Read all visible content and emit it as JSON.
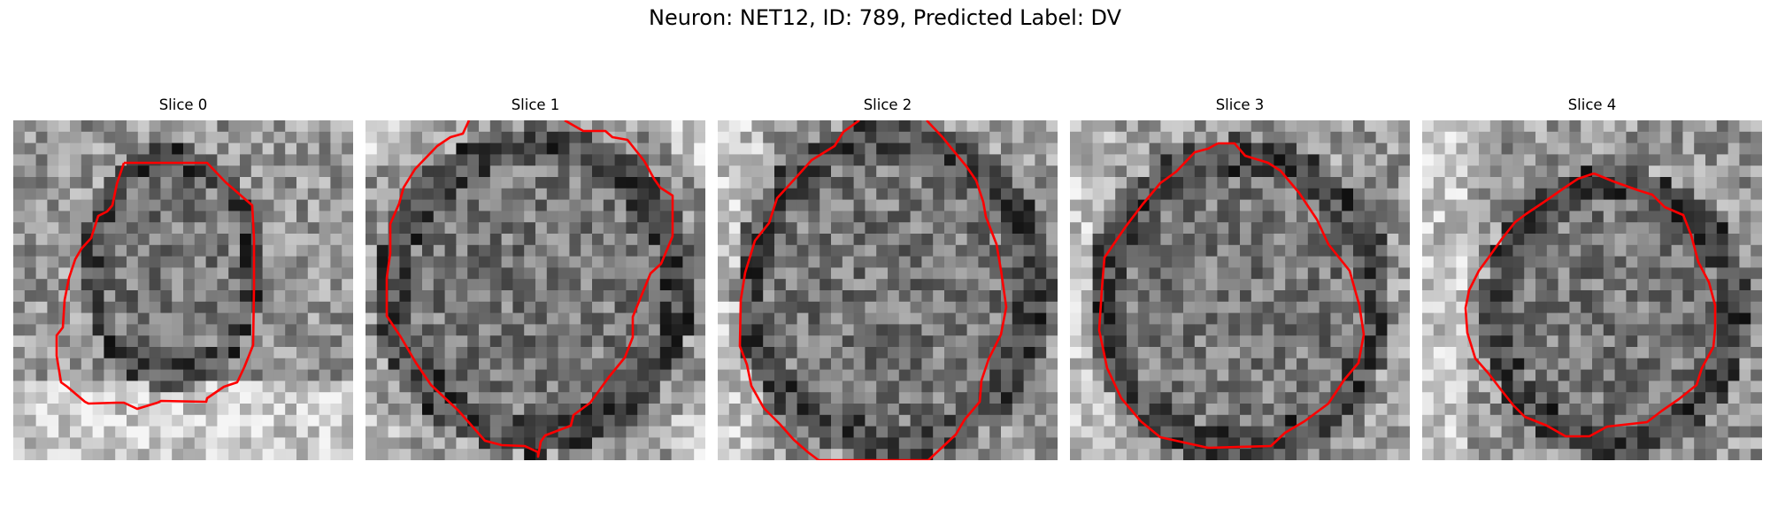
{
  "figure": {
    "title": "Neuron: NET12, ID: 789, Predicted Label: DV",
    "contour_color": "#ff0000"
  },
  "panels": [
    {
      "title": "Slice 0"
    },
    {
      "title": "Slice 1"
    },
    {
      "title": "Slice 2"
    },
    {
      "title": "Slice 3"
    },
    {
      "title": "Slice 4"
    }
  ]
}
